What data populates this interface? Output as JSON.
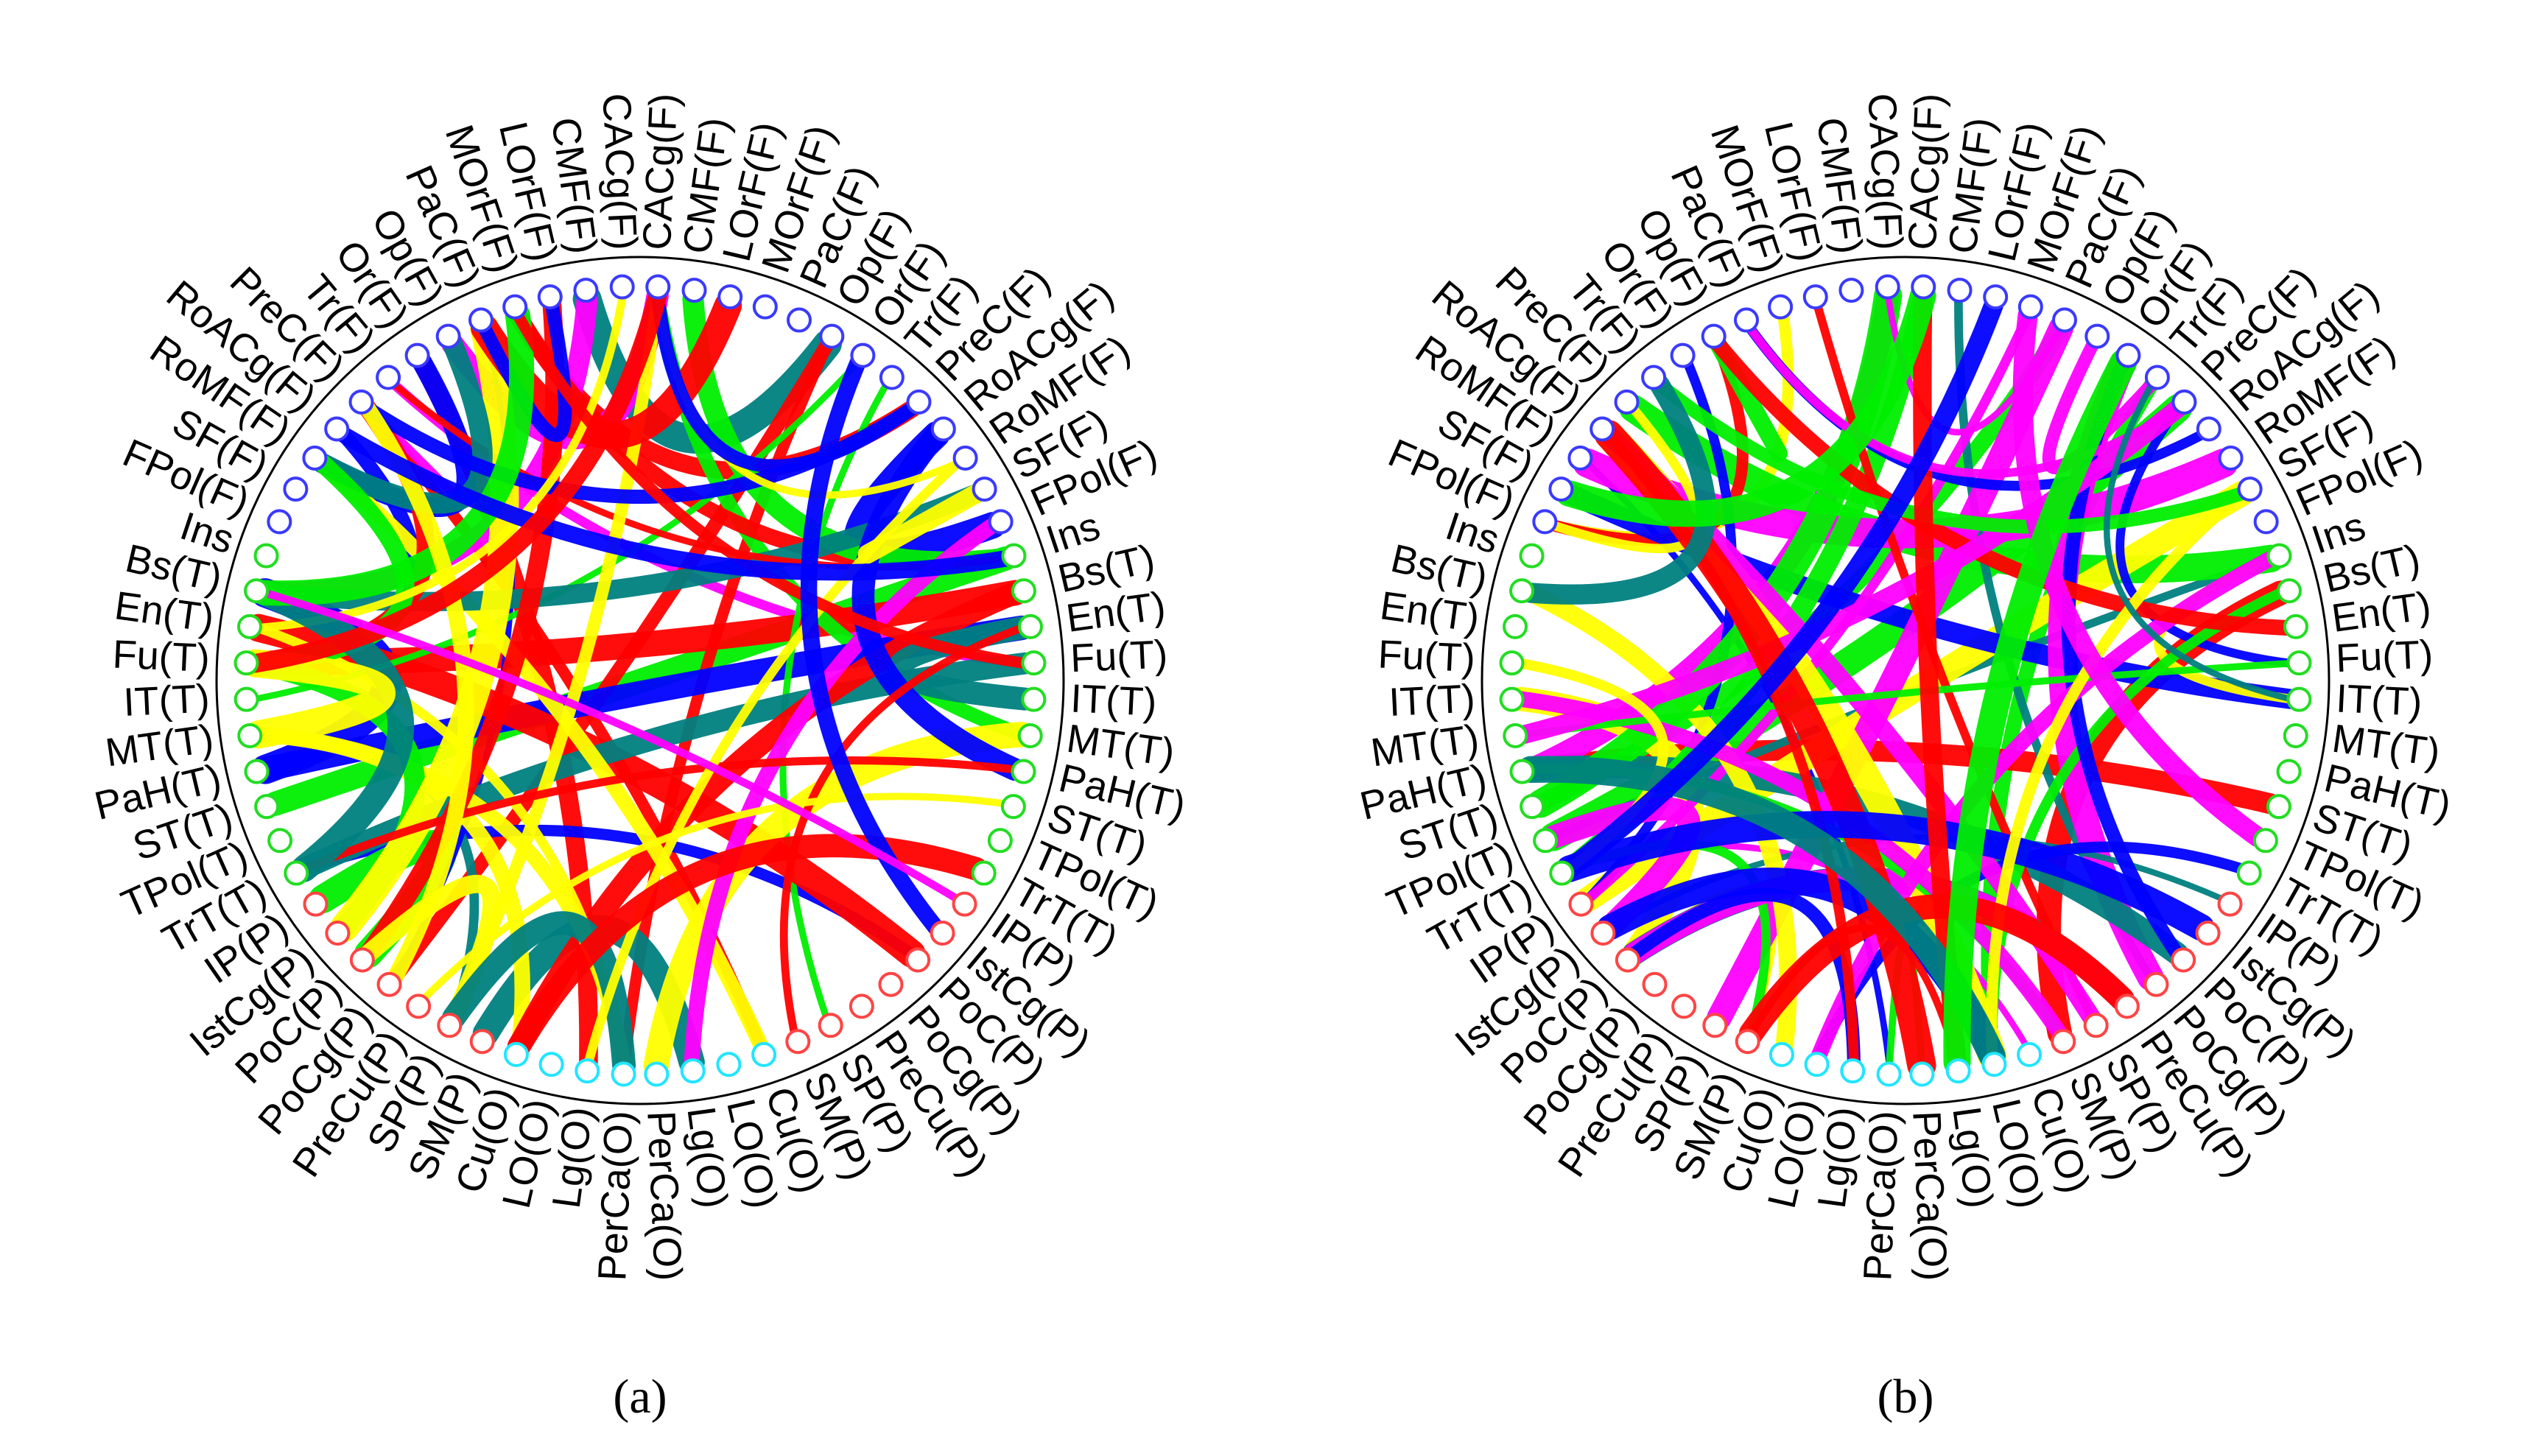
{
  "panels": [
    {
      "caption": "(a)"
    },
    {
      "caption": "(b)"
    }
  ],
  "regions": [
    "CACg(F)",
    "CMF(F)",
    "LOrF(F)",
    "MOrF(F)",
    "PaC(F)",
    "Op(F)",
    "Or(F)",
    "Tr(F)",
    "PreC(F)",
    "RoACg(F)",
    "RoMF(F)",
    "SF(F)",
    "FPol(F)",
    "Ins",
    "Bs(T)",
    "En(T)",
    "Fu(T)",
    "IT(T)",
    "MT(T)",
    "PaH(T)",
    "ST(T)",
    "TPol(T)",
    "TrT(T)",
    "IP(P)",
    "IstCg(P)",
    "PoC(P)",
    "PoCg(P)",
    "PreCu(P)",
    "SP(P)",
    "SM(P)",
    "Cu(O)",
    "LO(O)",
    "Lg(O)",
    "PerCa(O)"
  ]
}
